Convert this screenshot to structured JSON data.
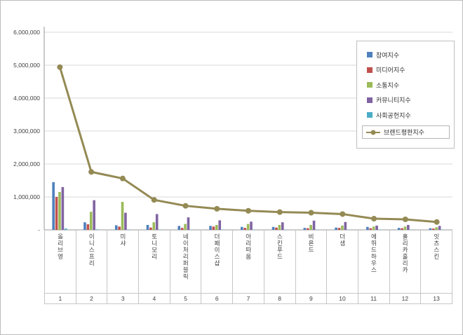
{
  "chart_data": {
    "type": "bar",
    "subtype": "grouped-bars-with-line",
    "title": "",
    "categories": [
      "올리브영",
      "이니스프리",
      "미샤",
      "토니모리",
      "네이처리퍼블릭",
      "더페이스샵",
      "아리따움",
      "스킨푸드",
      "비욘드",
      "더샘",
      "에뛰드하우스",
      "홀리카홀리카",
      "잇츠스킨"
    ],
    "ranks": [
      "1",
      "2",
      "3",
      "4",
      "5",
      "6",
      "7",
      "8",
      "9",
      "10",
      "11",
      "12",
      "13"
    ],
    "y_axis": {
      "min": 0,
      "max": 6000000,
      "step": 1000000,
      "tick_labels": [
        "-",
        "1,000,000",
        "2,000,000",
        "3,000,000",
        "4,000,000",
        "5,000,000",
        "6,000,000"
      ]
    },
    "grid": true,
    "legend_position": "top-right",
    "bar_series": [
      {
        "name": "참여지수",
        "color": "#4F81BD",
        "values": [
          1450000,
          230000,
          140000,
          150000,
          120000,
          120000,
          90000,
          90000,
          60000,
          70000,
          90000,
          60000,
          50000
        ]
      },
      {
        "name": "미디어지수",
        "color": "#C0504D",
        "values": [
          1000000,
          170000,
          100000,
          70000,
          60000,
          100000,
          60000,
          70000,
          50000,
          60000,
          50000,
          50000,
          40000
        ]
      },
      {
        "name": "소통지수",
        "color": "#9BBB59",
        "values": [
          1150000,
          550000,
          850000,
          230000,
          180000,
          150000,
          180000,
          150000,
          150000,
          130000,
          100000,
          100000,
          80000
        ]
      },
      {
        "name": "커뮤니티지수",
        "color": "#8064A2",
        "values": [
          1300000,
          900000,
          520000,
          480000,
          380000,
          290000,
          250000,
          230000,
          280000,
          240000,
          130000,
          150000,
          120000
        ]
      },
      {
        "name": "사회공헌지수",
        "color": "#4BACC6",
        "values": [
          40000,
          15000,
          12000,
          10000,
          10000,
          10000,
          10000,
          10000,
          10000,
          10000,
          10000,
          10000,
          10000
        ]
      }
    ],
    "line_series": {
      "name": "브랜드평판지수",
      "color": "#948A54",
      "values": [
        4940000,
        1760000,
        1560000,
        910000,
        730000,
        640000,
        580000,
        540000,
        520000,
        480000,
        340000,
        320000,
        240000
      ]
    }
  }
}
